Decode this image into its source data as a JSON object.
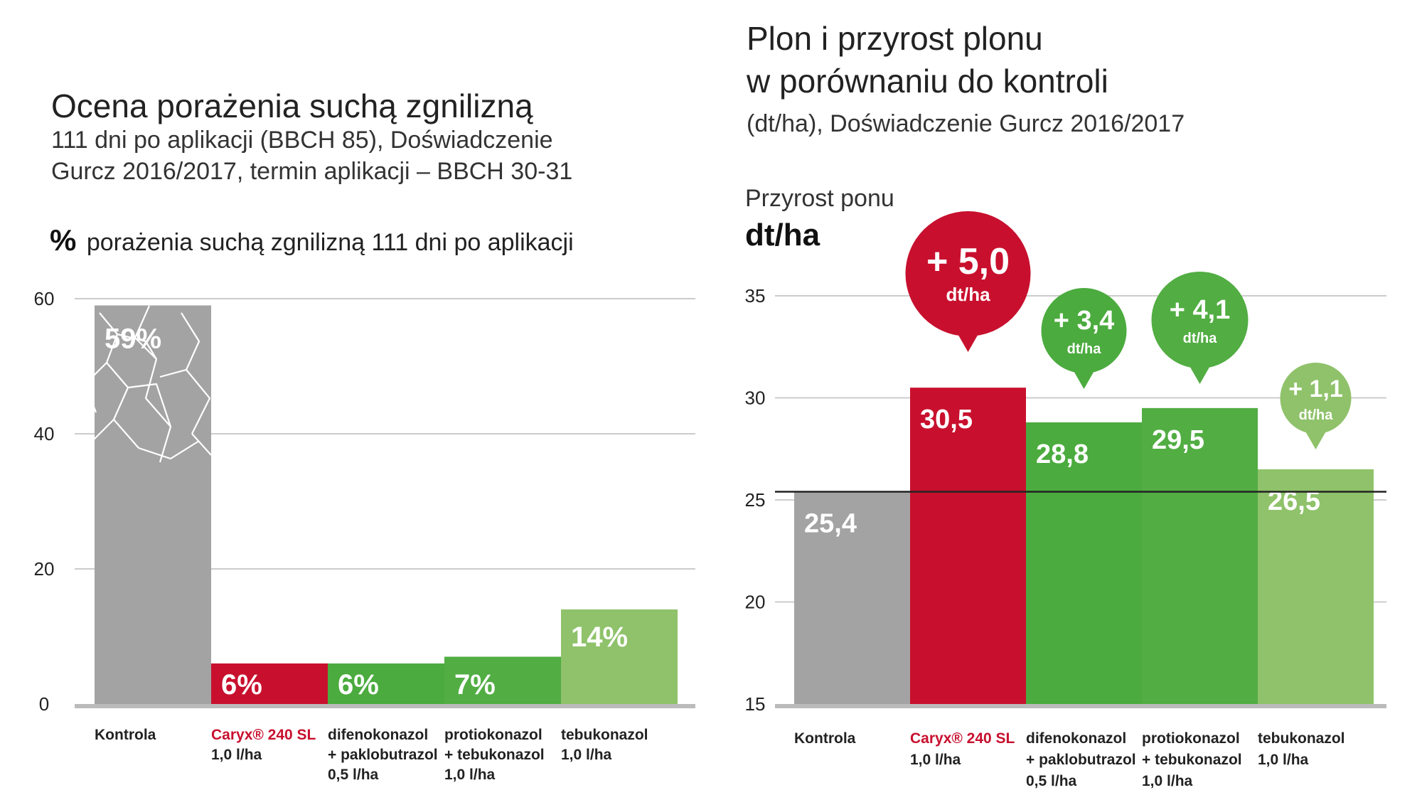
{
  "left": {
    "title": "Ocena porażenia suchą zgnilizną",
    "subtitle_lines": [
      "111 dni po aplikacji (BBCH 85), Doświadczenie",
      "Gurcz 2016/2017, termin aplikacji – BBCH 30-31"
    ],
    "metric_symbol": "%",
    "metric_label": "porażenia suchą zgnilizną 111 dni po aplikacji"
  },
  "right": {
    "title_lines": [
      "Plon i przyrost plonu",
      "w porównaniu do kontroli"
    ],
    "subtitle": "(dt/ha), Doświadczenie Gurcz 2016/2017",
    "axis_caption": "Przyrost ponu",
    "axis_unit": "dt/ha"
  },
  "colors": {
    "control": "#a3a3a3",
    "caryx": "#c8102e",
    "green_mid": "#4bab3e",
    "green_dark": "#52ad43",
    "green_light": "#8fc26a",
    "grid": "#cccccc",
    "axis": "#bbbbbb",
    "baseline": "#222222"
  },
  "chart_data": [
    {
      "type": "bar",
      "title": "Ocena porażenia suchą zgnilizną",
      "ylabel": "% porażenia suchą zgnilizną 111 dni po aplikacji",
      "ylim": [
        0,
        60
      ],
      "yticks": [
        "0",
        "20",
        "40",
        "60"
      ],
      "grid": true,
      "categories": [
        {
          "lines": [
            "Kontrola"
          ],
          "brand": false
        },
        {
          "lines": [
            "Caryx® 240 SL",
            "1,0 l/ha"
          ],
          "brand": true
        },
        {
          "lines": [
            "difenokonazol",
            "+ paklobutrazol",
            "0,5 l/ha"
          ],
          "brand": false
        },
        {
          "lines": [
            "protiokonazol",
            "+ tebukonazol",
            "1,0 l/ha"
          ],
          "brand": false
        },
        {
          "lines": [
            "tebukonazol",
            "1,0 l/ha"
          ],
          "brand": false
        }
      ],
      "values": [
        59,
        6,
        6,
        7,
        14
      ],
      "labels": [
        "59%",
        "6%",
        "6%",
        "7%",
        "14%"
      ],
      "bar_colors": [
        "control",
        "caryx",
        "green_mid",
        "green_dark",
        "green_light"
      ]
    },
    {
      "type": "bar",
      "title": "Plon i przyrost plonu w porównaniu do kontroli",
      "ylabel": "dt/ha",
      "ylim": [
        15,
        35
      ],
      "yticks": [
        "15",
        "20",
        "25",
        "30",
        "35"
      ],
      "grid": true,
      "reference_line": 25.4,
      "categories": [
        {
          "lines": [
            "Kontrola"
          ],
          "brand": false
        },
        {
          "lines": [
            "Caryx® 240 SL",
            "1,0 l/ha"
          ],
          "brand": true
        },
        {
          "lines": [
            "difenokonazol",
            "+ paklobutrazol",
            "0,5 l/ha"
          ],
          "brand": false
        },
        {
          "lines": [
            "protiokonazol",
            "+ tebukonazol",
            "1,0 l/ha"
          ],
          "brand": false
        },
        {
          "lines": [
            "tebukonazol",
            "1,0 l/ha"
          ],
          "brand": false
        }
      ],
      "values": [
        25.4,
        30.5,
        28.8,
        29.5,
        26.5
      ],
      "labels": [
        "25,4",
        "30,5",
        "28,8",
        "29,5",
        "26,5"
      ],
      "increase": [
        null,
        5.0,
        3.4,
        4.1,
        1.1
      ],
      "increase_labels": [
        null,
        "+ 5,0",
        "+ 3,4",
        "+ 4,1",
        "+ 1,1"
      ],
      "increase_unit": "dt/ha",
      "bar_colors": [
        "control",
        "caryx",
        "green_mid",
        "green_dark",
        "green_light"
      ]
    }
  ]
}
